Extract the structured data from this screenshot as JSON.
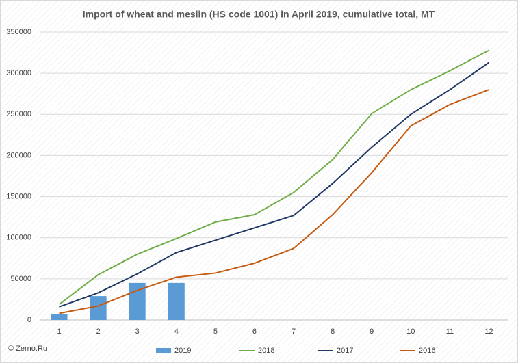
{
  "chart_data": {
    "type": "combo",
    "title": "Import of wheat and meslin (HS code 1001) in April 2019, cumulative total, MT",
    "categories": [
      "1",
      "2",
      "3",
      "4",
      "5",
      "6",
      "7",
      "8",
      "9",
      "10",
      "11",
      "12"
    ],
    "series": [
      {
        "name": "2019",
        "type": "bar",
        "color": "#5b9bd5",
        "values": [
          7000,
          29000,
          45000,
          45000,
          null,
          null,
          null,
          null,
          null,
          null,
          null,
          null
        ]
      },
      {
        "name": "2018",
        "type": "line",
        "color": "#70ad47",
        "values": [
          19000,
          55000,
          80000,
          99000,
          119000,
          128000,
          155000,
          195000,
          251000,
          280000,
          303000,
          328000
        ]
      },
      {
        "name": "2017",
        "type": "line",
        "color": "#203864",
        "values": [
          16000,
          33000,
          56000,
          82000,
          97000,
          112000,
          127000,
          166000,
          210000,
          250000,
          280000,
          313000
        ]
      },
      {
        "name": "2016",
        "type": "line",
        "color": "#c55a11",
        "values": [
          8000,
          17000,
          36000,
          52000,
          57000,
          69000,
          87000,
          128000,
          179000,
          236000,
          262000,
          280000
        ]
      }
    ],
    "ylim": [
      0,
      350000
    ],
    "yticks": [
      0,
      50000,
      100000,
      150000,
      200000,
      250000,
      300000,
      350000
    ],
    "grid": true,
    "legend": "bottom",
    "source": "© Zerno.Ru"
  }
}
